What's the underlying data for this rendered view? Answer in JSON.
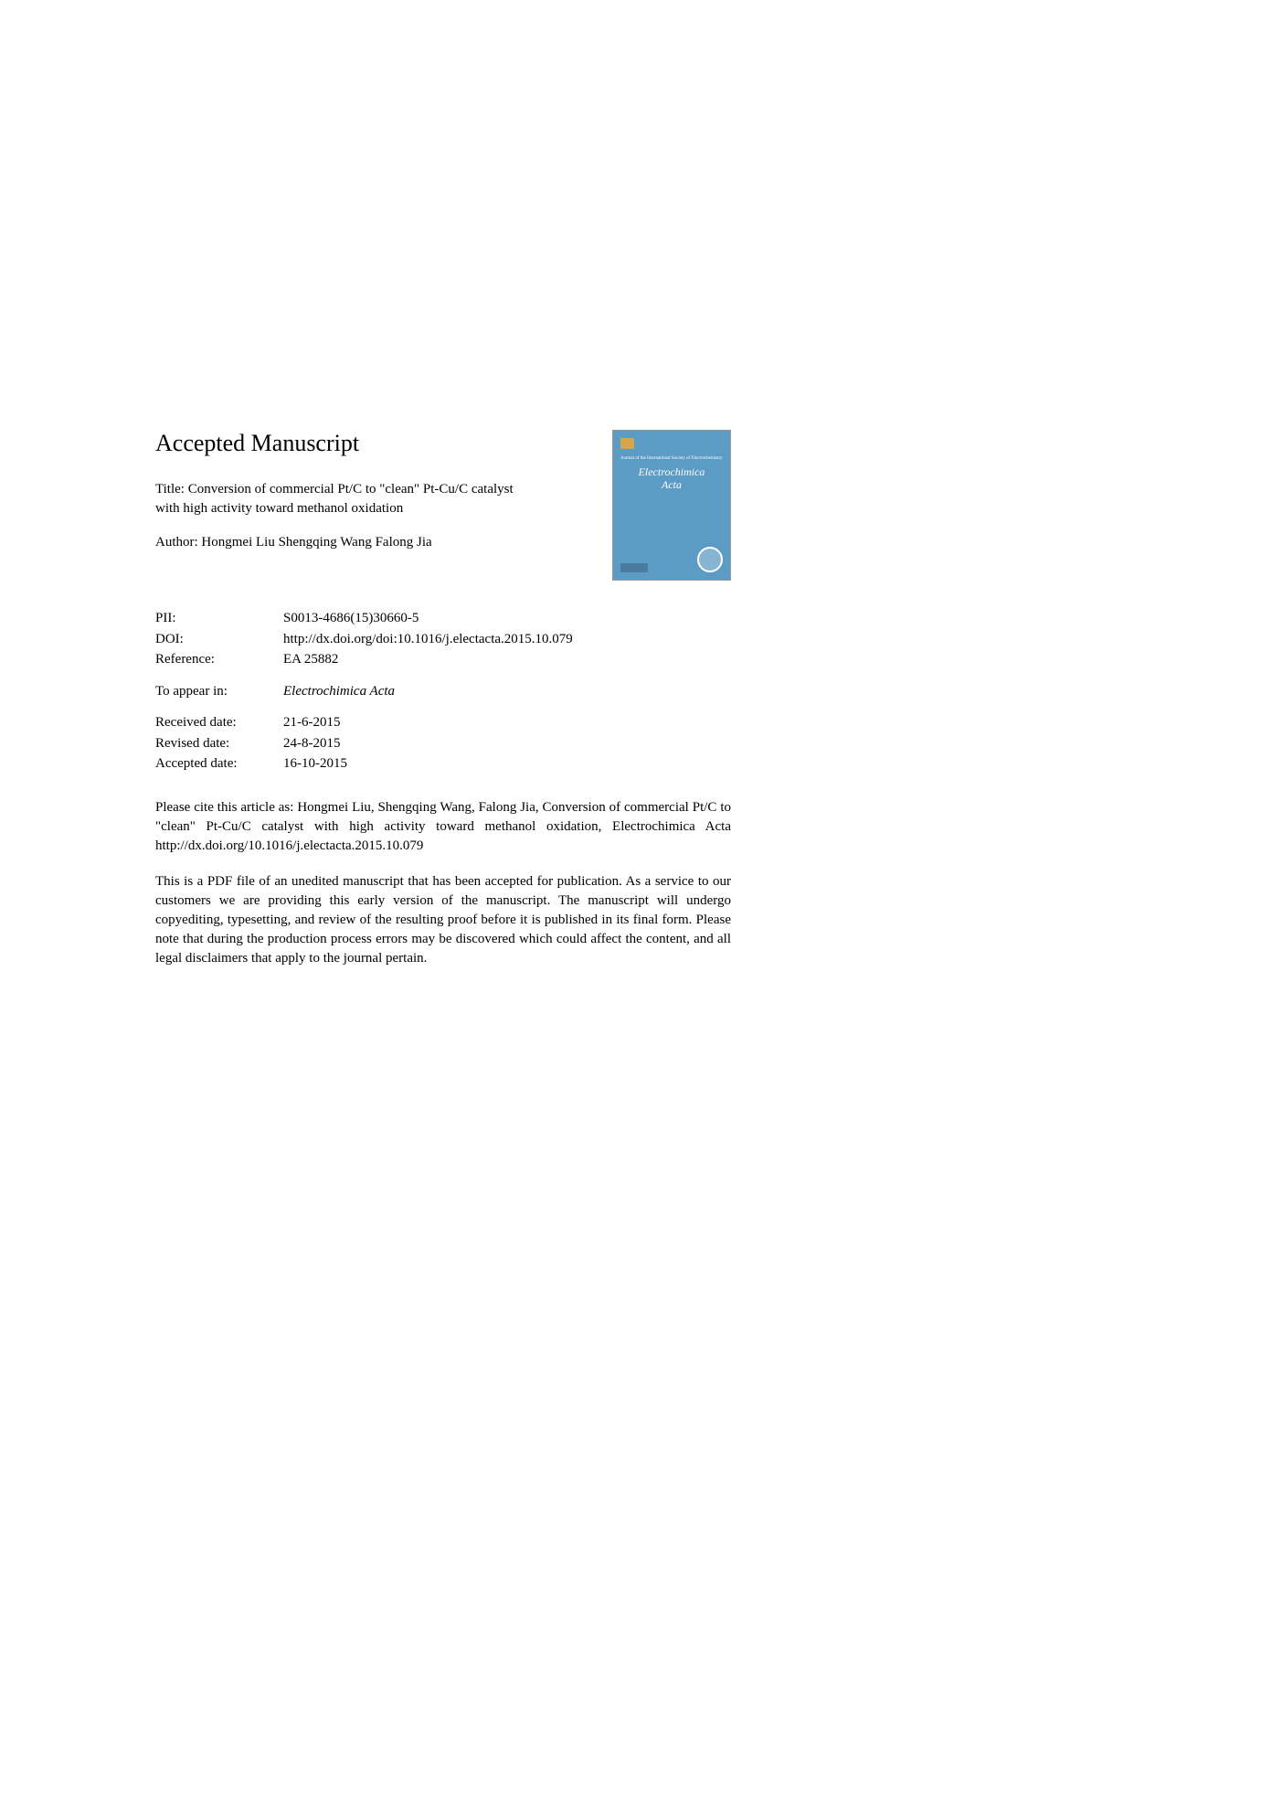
{
  "heading": "Accepted Manuscript",
  "title_label": "Title:",
  "title_text": "Conversion of commercial Pt/C to \"clean\" Pt-Cu/C catalyst with high activity toward methanol oxidation",
  "author_label": "Author:",
  "author_text": "Hongmei Liu Shengqing Wang Falong Jia",
  "journal_cover": {
    "title_line1": "Electrochimica",
    "title_line2": "Acta",
    "tagline": "Journal of the International Society of Electrochemistry"
  },
  "meta": {
    "pii_label": "PII:",
    "pii_value": "S0013-4686(15)30660-5",
    "doi_label": "DOI:",
    "doi_value": "http://dx.doi.org/doi:10.1016/j.electacta.2015.10.079",
    "reference_label": "Reference:",
    "reference_value": "EA 25882",
    "appear_label": "To appear in:",
    "appear_value": "Electrochimica Acta",
    "received_label": "Received date:",
    "received_value": "21-6-2015",
    "revised_label": "Revised date:",
    "revised_value": "24-8-2015",
    "accepted_label": "Accepted date:",
    "accepted_value": "16-10-2015"
  },
  "citation": "Please cite this article as: Hongmei Liu, Shengqing Wang, Falong Jia, Conversion of commercial Pt/C to \"clean\" Pt-Cu/C catalyst with high activity toward methanol oxidation, Electrochimica Acta http://dx.doi.org/10.1016/j.electacta.2015.10.079",
  "disclaimer": "This is a PDF file of an unedited manuscript that has been accepted for publication. As a service to our customers we are providing this early version of the manuscript. The manuscript will undergo copyediting, typesetting, and review of the resulting proof before it is published in its final form. Please note that during the production process errors may be discovered which could affect the content, and all legal disclaimers that apply to the journal pertain.",
  "colors": {
    "cover_bg": "#5b9bc4",
    "cover_accent": "#d4a54a",
    "text": "#000000",
    "background": "#ffffff"
  },
  "typography": {
    "heading_fontsize": 26,
    "body_fontsize": 15,
    "font_family": "Georgia, Times New Roman, serif"
  }
}
